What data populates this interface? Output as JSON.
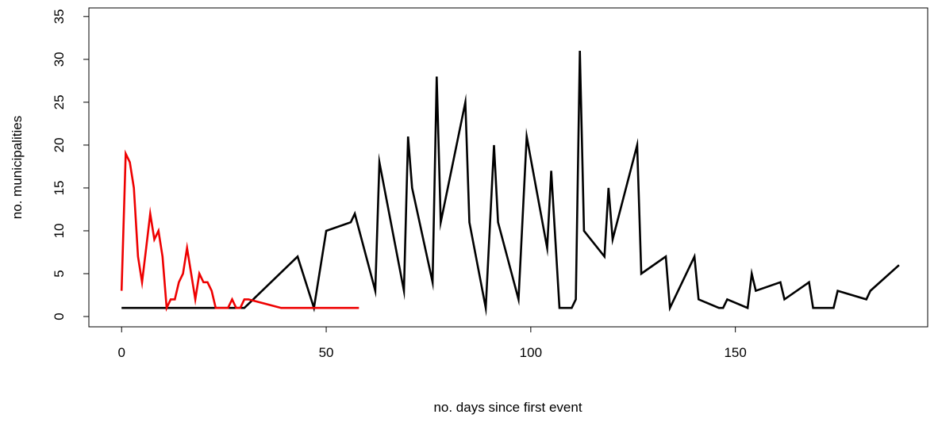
{
  "chart_data": {
    "type": "line",
    "title": "",
    "xlabel": "no. days since first event",
    "ylabel": "no. municipalities",
    "xlim": [
      -8,
      197
    ],
    "ylim": [
      -1.2,
      36
    ],
    "x_ticks": [
      0,
      50,
      100,
      150
    ],
    "y_ticks": [
      0,
      5,
      10,
      15,
      20,
      25,
      30,
      35
    ],
    "grid": false,
    "legend": "none",
    "series": [
      {
        "color": "#000000",
        "points": [
          [
            0,
            1
          ],
          [
            30,
            1
          ],
          [
            43,
            7
          ],
          [
            47,
            1
          ],
          [
            50,
            10
          ],
          [
            56,
            11
          ],
          [
            57,
            12
          ],
          [
            62,
            3
          ],
          [
            63,
            18
          ],
          [
            69,
            3
          ],
          [
            70,
            21
          ],
          [
            71,
            15
          ],
          [
            76,
            4
          ],
          [
            77,
            28
          ],
          [
            78,
            11
          ],
          [
            84,
            25
          ],
          [
            85,
            11
          ],
          [
            89,
            1
          ],
          [
            91,
            20
          ],
          [
            92,
            11
          ],
          [
            97,
            2
          ],
          [
            99,
            21
          ],
          [
            104,
            8
          ],
          [
            105,
            17
          ],
          [
            107,
            1
          ],
          [
            110,
            1
          ],
          [
            111,
            2
          ],
          [
            112,
            31
          ],
          [
            113,
            10
          ],
          [
            118,
            7
          ],
          [
            119,
            15
          ],
          [
            120,
            9
          ],
          [
            126,
            20
          ],
          [
            127,
            5
          ],
          [
            133,
            7
          ],
          [
            134,
            1
          ],
          [
            140,
            7
          ],
          [
            141,
            2
          ],
          [
            146,
            1
          ],
          [
            147,
            1
          ],
          [
            148,
            2
          ],
          [
            153,
            1
          ],
          [
            154,
            5
          ],
          [
            155,
            3
          ],
          [
            161,
            4
          ],
          [
            162,
            2
          ],
          [
            168,
            4
          ],
          [
            169,
            1
          ],
          [
            174,
            1
          ],
          [
            175,
            3
          ],
          [
            182,
            2
          ],
          [
            183,
            3
          ],
          [
            190,
            6
          ]
        ]
      },
      {
        "color": "#ee0000",
        "points": [
          [
            0,
            3
          ],
          [
            1,
            19
          ],
          [
            2,
            18
          ],
          [
            3,
            15
          ],
          [
            4,
            7
          ],
          [
            5,
            4
          ],
          [
            6,
            8
          ],
          [
            7,
            12
          ],
          [
            8,
            9
          ],
          [
            9,
            10
          ],
          [
            10,
            7
          ],
          [
            11,
            1
          ],
          [
            12,
            2
          ],
          [
            13,
            2
          ],
          [
            14,
            4
          ],
          [
            15,
            5
          ],
          [
            16,
            8
          ],
          [
            17,
            5
          ],
          [
            18,
            2
          ],
          [
            19,
            5
          ],
          [
            20,
            4
          ],
          [
            21,
            4
          ],
          [
            22,
            3
          ],
          [
            23,
            1
          ],
          [
            26,
            1
          ],
          [
            27,
            2
          ],
          [
            28,
            1
          ],
          [
            29,
            1
          ],
          [
            30,
            2
          ],
          [
            31,
            2
          ],
          [
            39,
            1
          ],
          [
            58,
            1
          ]
        ]
      }
    ]
  }
}
